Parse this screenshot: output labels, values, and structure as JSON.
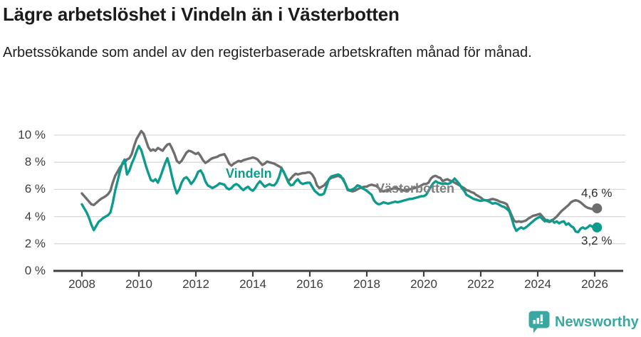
{
  "header": {
    "title": "Lägre arbetslöshet i Vindeln än i Västerbotten",
    "subtitle": "Arbetssökande som andel av den registerbaserade arbetskraften månad för månad."
  },
  "chart_data": {
    "type": "line",
    "title": "Lägre arbetslöshet i Vindeln än i Västerbotten",
    "subtitle": "Arbetssökande som andel av den registerbaserade arbetskraften månad för månad.",
    "unit": "%",
    "grid": "horizontal",
    "legend_position": "inline-labels-on-lines",
    "x_start_year": 2008,
    "x_step": "monthly",
    "x_ticks": [
      "2008",
      "2010",
      "2012",
      "2014",
      "2016",
      "2018",
      "2020",
      "2022",
      "2024",
      "2026"
    ],
    "y_ticks": [
      "0 %",
      "2 %",
      "4 %",
      "6 %",
      "8 %",
      "10 %"
    ],
    "ylim": [
      0,
      10
    ],
    "axis_color": "#3f3f3f",
    "gridline_color": "#d9d9d9",
    "series": [
      {
        "name": "Västerbotten",
        "color": "#6e6e6e",
        "end_label": "4,6 %",
        "end_value": 4.6,
        "values": [
          5.7,
          5.5,
          5.3,
          5.1,
          4.9,
          4.85,
          5.0,
          5.15,
          5.3,
          5.4,
          5.5,
          5.65,
          5.9,
          6.5,
          7.0,
          7.3,
          7.6,
          7.85,
          8.0,
          8.2,
          8.3,
          8.6,
          9.2,
          9.7,
          10.0,
          10.3,
          10.1,
          9.6,
          9.1,
          8.85,
          8.95,
          8.85,
          9.05,
          8.95,
          8.85,
          9.1,
          9.3,
          9.35,
          9.0,
          8.6,
          8.1,
          7.95,
          8.1,
          8.4,
          8.7,
          8.85,
          8.8,
          8.7,
          8.6,
          8.7,
          8.45,
          8.15,
          7.95,
          8.05,
          8.2,
          8.3,
          8.35,
          8.4,
          8.5,
          8.55,
          8.6,
          8.3,
          7.9,
          7.75,
          7.9,
          8.0,
          8.1,
          8.05,
          8.15,
          8.2,
          8.25,
          8.3,
          8.35,
          8.3,
          8.2,
          8.0,
          7.8,
          7.9,
          8.05,
          8.0,
          7.95,
          7.9,
          7.8,
          7.7,
          7.6,
          7.3,
          6.9,
          6.6,
          6.8,
          7.0,
          7.15,
          7.1,
          7.15,
          7.2,
          7.2,
          7.25,
          7.25,
          7.1,
          6.8,
          6.3,
          6.1,
          6.2,
          6.3,
          6.5,
          6.7,
          6.85,
          6.9,
          6.95,
          7.0,
          6.9,
          6.8,
          6.4,
          5.95,
          5.9,
          5.85,
          5.9,
          6.0,
          6.1,
          6.15,
          6.2,
          6.2,
          6.3,
          6.35,
          6.3,
          6.25,
          6.1,
          5.9,
          5.85,
          5.9,
          5.95,
          6.0,
          6.05,
          6.1,
          6.05,
          6.0,
          5.95,
          5.9,
          5.95,
          6.0,
          6.05,
          6.1,
          6.15,
          6.2,
          6.3,
          6.4,
          6.4,
          6.5,
          6.8,
          6.95,
          7.0,
          6.9,
          6.85,
          6.6,
          6.7,
          6.75,
          6.65,
          6.6,
          6.5,
          6.4,
          6.3,
          6.2,
          6.1,
          5.95,
          5.9,
          5.8,
          5.75,
          5.6,
          5.5,
          5.4,
          5.25,
          5.2,
          5.2,
          5.25,
          5.3,
          5.25,
          5.2,
          5.1,
          5.05,
          5.0,
          4.9,
          4.5,
          4.1,
          3.7,
          3.6,
          3.65,
          3.6,
          3.65,
          3.7,
          3.85,
          3.95,
          4.05,
          4.1,
          4.15,
          4.2,
          4.0,
          3.8,
          3.65,
          3.6,
          3.7,
          3.85,
          4.0,
          4.2,
          4.4,
          4.55,
          4.7,
          4.85,
          5.05,
          5.15,
          5.2,
          5.15,
          5.05,
          4.9,
          4.75,
          4.65,
          4.6,
          4.55,
          4.55,
          4.6
        ]
      },
      {
        "name": "Vindeln",
        "color": "#0d9b8d",
        "end_label": "3,2 %",
        "end_value": 3.2,
        "values": [
          4.9,
          4.6,
          4.3,
          3.9,
          3.4,
          3.0,
          3.3,
          3.6,
          3.75,
          3.9,
          4.0,
          4.1,
          4.3,
          5.0,
          5.9,
          6.6,
          7.3,
          7.9,
          8.2,
          7.1,
          7.4,
          7.9,
          8.3,
          8.8,
          9.2,
          8.9,
          8.3,
          7.7,
          7.2,
          6.7,
          6.6,
          6.75,
          6.5,
          6.9,
          7.4,
          7.9,
          8.3,
          7.7,
          6.9,
          6.2,
          5.7,
          6.0,
          6.5,
          6.8,
          6.9,
          6.7,
          6.4,
          6.6,
          6.9,
          7.3,
          7.4,
          7.1,
          6.6,
          6.3,
          6.2,
          6.1,
          6.2,
          6.3,
          6.45,
          6.4,
          6.35,
          6.1,
          6.0,
          6.1,
          6.3,
          6.4,
          6.3,
          6.1,
          5.95,
          6.1,
          6.2,
          6.0,
          5.9,
          6.1,
          6.4,
          6.6,
          6.4,
          6.2,
          6.3,
          6.4,
          6.3,
          6.3,
          6.5,
          6.9,
          7.5,
          7.3,
          6.9,
          6.5,
          6.3,
          6.35,
          6.6,
          6.75,
          6.5,
          6.4,
          6.45,
          6.5,
          6.5,
          6.2,
          5.9,
          5.75,
          5.6,
          5.6,
          5.7,
          6.2,
          6.75,
          6.95,
          7.0,
          7.05,
          7.1,
          7.0,
          6.7,
          6.4,
          6.0,
          5.95,
          6.0,
          6.1,
          6.3,
          6.25,
          6.1,
          6.0,
          5.9,
          5.75,
          5.6,
          5.2,
          5.0,
          4.9,
          4.95,
          5.05,
          5.0,
          4.95,
          5.0,
          5.05,
          5.1,
          5.05,
          5.1,
          5.15,
          5.2,
          5.25,
          5.3,
          5.3,
          5.35,
          5.4,
          5.45,
          5.5,
          5.5,
          5.6,
          5.9,
          6.2,
          6.45,
          6.6,
          6.5,
          6.45,
          6.4,
          6.45,
          6.4,
          6.45,
          6.6,
          6.8,
          6.6,
          6.4,
          6.1,
          5.9,
          5.6,
          5.5,
          5.4,
          5.3,
          5.25,
          5.2,
          5.15,
          5.2,
          5.2,
          5.15,
          5.05,
          4.95,
          5.0,
          4.95,
          4.85,
          4.75,
          4.7,
          4.55,
          4.4,
          3.9,
          3.3,
          2.95,
          3.1,
          3.2,
          3.1,
          3.2,
          3.35,
          3.5,
          3.65,
          3.8,
          3.9,
          4.0,
          3.8,
          3.65,
          3.75,
          3.65,
          3.75,
          3.55,
          3.65,
          3.5,
          3.6,
          3.65,
          3.4,
          3.5,
          3.3,
          3.2,
          2.9,
          2.85,
          3.1,
          3.2,
          3.1,
          3.2,
          3.35,
          3.25,
          3.2,
          3.2
        ]
      }
    ]
  },
  "annotations": {
    "vindeln_label": "Vindeln",
    "vasterbotten_label": "Västerbotten",
    "end_label_vasterbotten": "4,6 %",
    "end_label_vindeln": "3,2 %"
  },
  "footer": {
    "brand": "Newsworthy",
    "brand_color": "#3ba7a1",
    "logo_icon": "bar-chart-exclamation-badge"
  }
}
